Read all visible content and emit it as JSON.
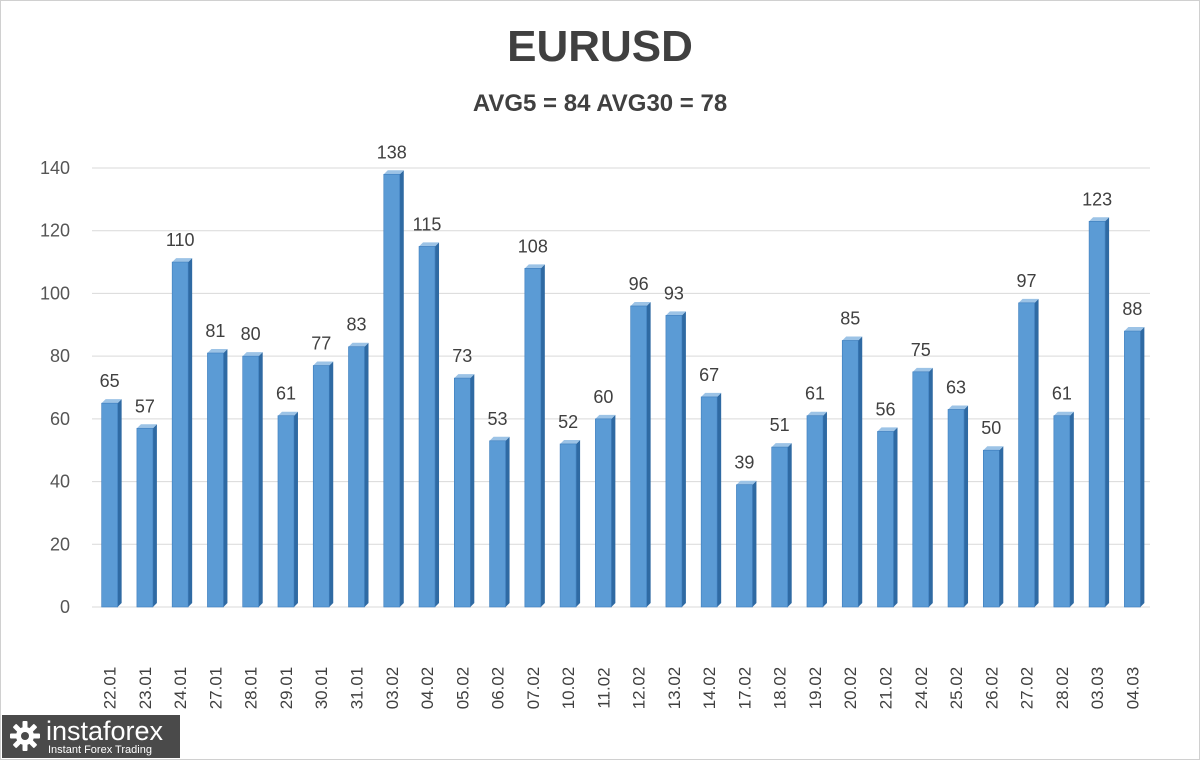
{
  "chart_data": {
    "type": "bar",
    "title": "EURUSD",
    "subtitle": "AVG5 = 84 AVG30 = 78",
    "xlabel": "",
    "ylabel": "",
    "ylim": [
      0,
      140
    ],
    "yticks": [
      0,
      20,
      40,
      60,
      80,
      100,
      120,
      140
    ],
    "grid": true,
    "legend": "none",
    "bar_color": "#5b9bd5",
    "categories": [
      "22.01",
      "23.01",
      "24.01",
      "27.01",
      "28.01",
      "29.01",
      "30.01",
      "31.01",
      "03.02",
      "04.02",
      "05.02",
      "06.02",
      "07.02",
      "10.02",
      "11.02",
      "12.02",
      "13.02",
      "14.02",
      "17.02",
      "18.02",
      "19.02",
      "20.02",
      "21.02",
      "24.02",
      "25.02",
      "26.02",
      "27.02",
      "28.02",
      "03.03",
      "04.03"
    ],
    "values": [
      65,
      57,
      110,
      81,
      80,
      61,
      77,
      83,
      138,
      115,
      73,
      53,
      108,
      52,
      60,
      96,
      93,
      67,
      39,
      51,
      61,
      85,
      56,
      75,
      63,
      50,
      97,
      61,
      123,
      88
    ]
  },
  "logo": {
    "name": "instaforex",
    "tagline": "Instant Forex Trading",
    "icon": "gear-icon"
  }
}
